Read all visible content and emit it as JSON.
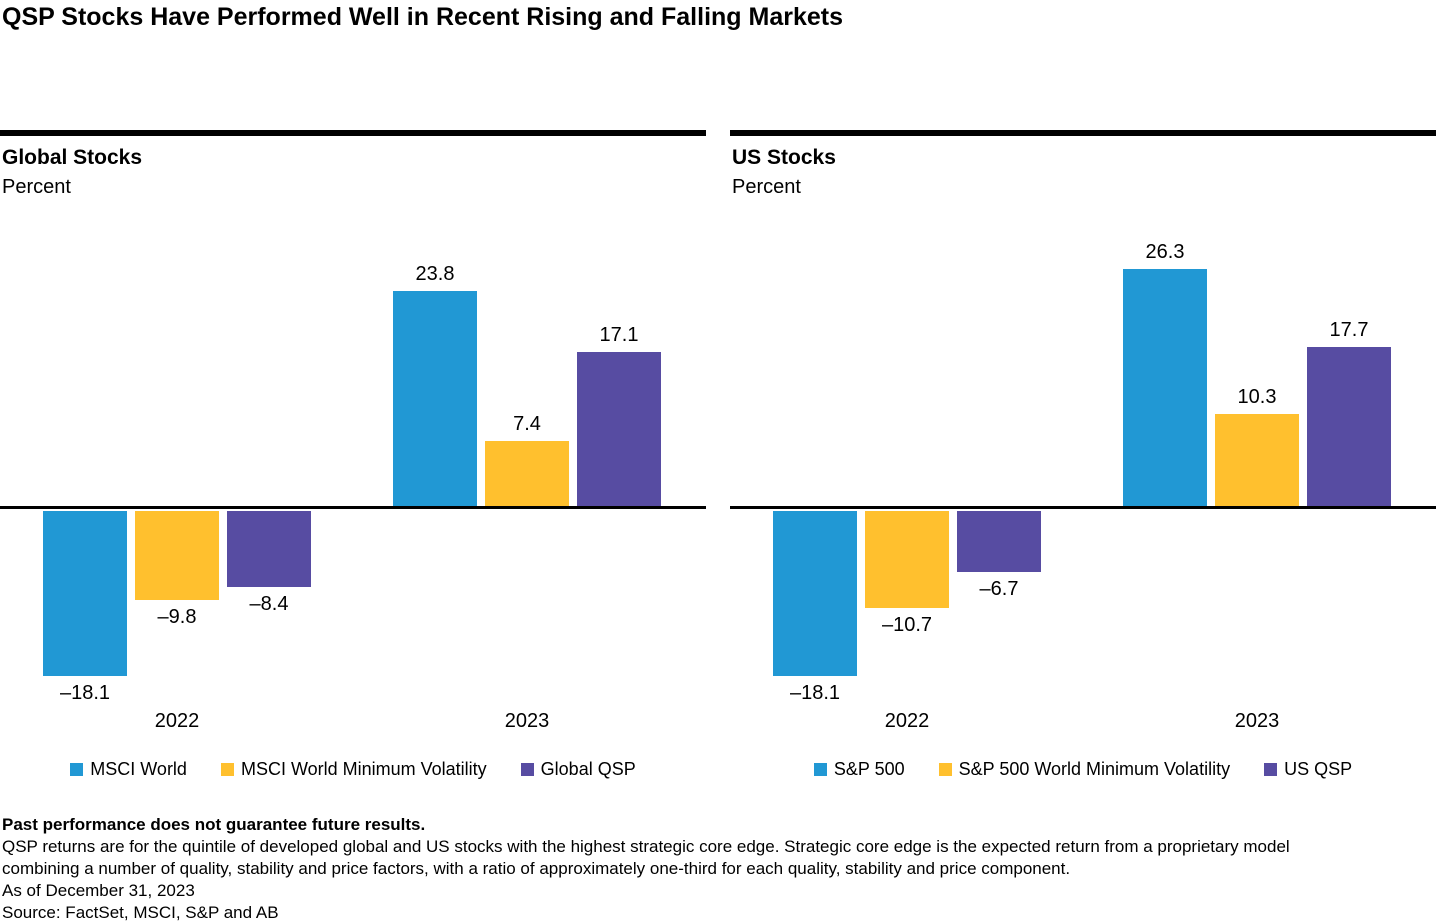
{
  "page_title": "QSP Stocks Have Performed Well in Recent Rising and Falling Markets",
  "colors": {
    "bar_blue": "#2198D4",
    "bar_yellow": "#FFC02E",
    "bar_purple": "#574CA2",
    "rule_black": "#000000",
    "background": "#FFFFFF"
  },
  "chart_data": [
    {
      "type": "bar",
      "title": "Global Stocks",
      "ylabel": "Percent",
      "categories": [
        "2022",
        "2023"
      ],
      "series": [
        {
          "name": "MSCI World",
          "color": "#2198D4",
          "values": [
            -18.1,
            23.8
          ]
        },
        {
          "name": "MSCI World Minimum Volatility",
          "color": "#FFC02E",
          "values": [
            -9.8,
            7.4
          ]
        },
        {
          "name": "Global QSP",
          "color": "#574CA2",
          "values": [
            -8.4,
            17.1
          ]
        }
      ],
      "data_labels": [
        [
          "–18.1",
          "23.8"
        ],
        [
          "–9.8",
          "7.4"
        ],
        [
          "–8.4",
          "17.1"
        ]
      ],
      "ylim": [
        -22,
        30
      ],
      "grid": false,
      "legend_position": "bottom"
    },
    {
      "type": "bar",
      "title": "US Stocks",
      "ylabel": "Percent",
      "categories": [
        "2022",
        "2023"
      ],
      "series": [
        {
          "name": "S&P 500",
          "color": "#2198D4",
          "values": [
            -18.1,
            26.3
          ]
        },
        {
          "name": "S&P 500 World Minimum Volatility",
          "color": "#FFC02E",
          "values": [
            -10.7,
            10.3
          ]
        },
        {
          "name": "US QSP",
          "color": "#574CA2",
          "values": [
            -6.7,
            17.7
          ]
        }
      ],
      "data_labels": [
        [
          "–18.1",
          "26.3"
        ],
        [
          "–10.7",
          "10.3"
        ],
        [
          "–6.7",
          "17.7"
        ]
      ],
      "ylim": [
        -22,
        30
      ],
      "grid": false,
      "legend_position": "bottom"
    }
  ],
  "footer": {
    "disclaimer": "Past performance does not guarantee future results.",
    "note_line1": "QSP returns are for the quintile of developed global and US stocks with the highest strategic core edge. Strategic core edge is the expected return from a proprietary model",
    "note_line2": "combining a number of quality, stability and price factors, with a ratio of approximately one-third for each quality, stability and price component.",
    "as_of": "As of December 31, 2023",
    "source": "Source: FactSet, MSCI, S&P and AB"
  }
}
